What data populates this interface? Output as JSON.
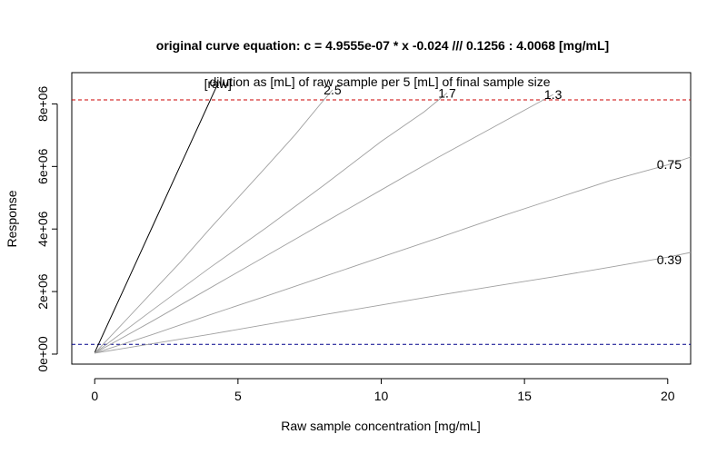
{
  "chart_data": {
    "type": "line",
    "title": "original curve equation: c  = 4.9555e-07 * x -0.024  ///  0.1256 : 4.0068 [mg/mL]",
    "subtitle": "dilution as [mL] of raw sample per 5 [mL] of final sample size",
    "xlabel": "Raw sample concentration [mg/mL]",
    "ylabel": "Response",
    "xlim": [
      -0.8,
      20.8
    ],
    "ylim": [
      -320000,
      9000000
    ],
    "x_ticks": [
      0,
      5,
      10,
      15,
      20
    ],
    "x_tick_labels": [
      "0",
      "5",
      "10",
      "15",
      "20"
    ],
    "y_ticks": [
      0,
      2000000,
      4000000,
      6000000,
      8000000
    ],
    "y_tick_labels": [
      "0e+00",
      "2e+06",
      "4e+06",
      "6e+06",
      "8e+06"
    ],
    "grid": false,
    "reference_lines": [
      {
        "y": 8130000,
        "color": "#cc0000",
        "style": "dashed"
      },
      {
        "y": 310000,
        "color": "#00008b",
        "style": "dashed"
      }
    ],
    "series": [
      {
        "name": "[raw]",
        "color": "#000000",
        "label_pos": "top",
        "x": [
          0.0,
          0.5,
          1.0,
          2.0,
          3.0,
          4.0,
          4.3
        ],
        "y": [
          50000,
          1050000,
          2050000,
          4050000,
          6050000,
          8050000,
          8650000
        ]
      },
      {
        "name": "2.5",
        "color": "#a0a0a0",
        "label_pos": "top",
        "x": [
          0.0,
          1.0,
          2.0,
          3.0,
          4.0,
          5.0,
          6.0,
          7.0,
          8.0,
          8.3
        ],
        "y": [
          30000,
          1000000,
          1980000,
          2950000,
          3990000,
          5000000,
          6000000,
          7020000,
          8130000,
          8450000
        ]
      },
      {
        "name": "1.7",
        "color": "#a0a0a0",
        "label_pos": "top",
        "x": [
          0.0,
          2.0,
          4.0,
          6.0,
          8.0,
          10.0,
          11.5,
          12.3
        ],
        "y": [
          30000,
          1400000,
          2750000,
          4050000,
          5400000,
          6800000,
          7750000,
          8350000
        ]
      },
      {
        "name": "1.3",
        "color": "#a0a0a0",
        "label_pos": "top",
        "x": [
          0.0,
          2.0,
          4.0,
          6.0,
          8.0,
          10.0,
          12.0,
          14.0,
          16.0
        ],
        "y": [
          30000,
          1050000,
          2100000,
          3150000,
          4200000,
          5250000,
          6300000,
          7300000,
          8300000
        ]
      },
      {
        "name": "0.75",
        "color": "#a0a0a0",
        "label_pos": "right",
        "x": [
          0.0,
          2.0,
          4.0,
          6.0,
          8.0,
          10.0,
          12.0,
          14.0,
          16.0,
          18.0,
          20.0,
          20.8
        ],
        "y": [
          30000,
          620000,
          1250000,
          1860000,
          2480000,
          3100000,
          3720000,
          4350000,
          4950000,
          5550000,
          6050000,
          6300000
        ]
      },
      {
        "name": "0.39",
        "color": "#a0a0a0",
        "label_pos": "right",
        "x": [
          0.0,
          2.0,
          4.0,
          6.0,
          8.0,
          10.0,
          12.0,
          14.0,
          16.0,
          18.0,
          20.0,
          20.8
        ],
        "y": [
          30000,
          330000,
          630000,
          950000,
          1260000,
          1570000,
          1880000,
          2180000,
          2470000,
          2780000,
          3100000,
          3250000
        ]
      }
    ]
  }
}
